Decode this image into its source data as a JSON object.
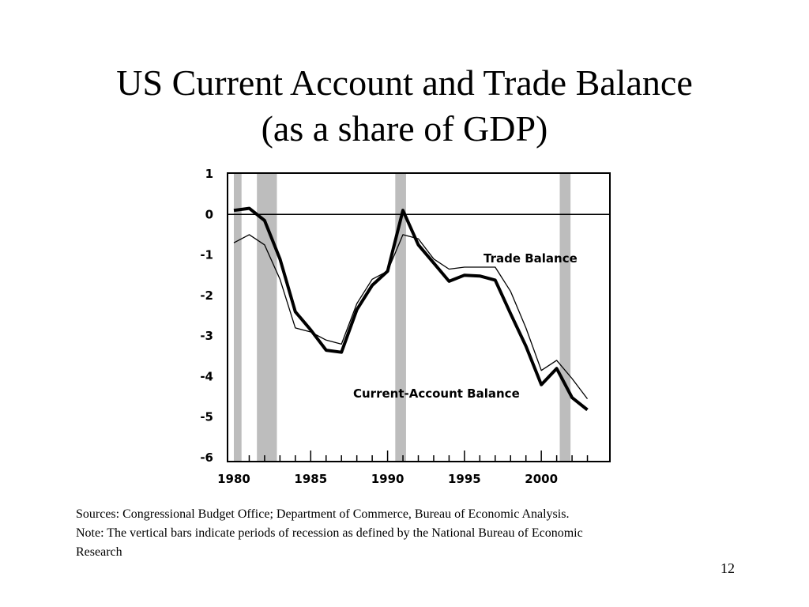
{
  "slide": {
    "title_line1": "US Current Account and Trade Balance",
    "title_line2": "(as a share of GDP)",
    "source_line1": "Sources: Congressional Budget Office; Department of Commerce, Bureau of Economic Analysis.",
    "source_line2": "Note: The vertical bars indicate periods of recession as defined by the National Bureau of Economic",
    "source_line3": "Research",
    "page_number": "12"
  },
  "chart_data": {
    "type": "line",
    "title": "",
    "xlabel": "",
    "ylabel": "",
    "xlim": [
      1980,
      2004
    ],
    "ylim": [
      -6,
      1
    ],
    "x_ticks": [
      1980,
      1985,
      1990,
      1995,
      2000
    ],
    "x_tick_labels": [
      "1980",
      "1985",
      "1990",
      "1995",
      "2000"
    ],
    "y_ticks": [
      1,
      0,
      -1,
      -2,
      -3,
      -4,
      -5,
      -6
    ],
    "y_tick_labels": [
      "1",
      "0",
      "-1",
      "-2",
      "-3",
      "-4",
      "-5",
      "-6"
    ],
    "zero_line": true,
    "grid": false,
    "recession_periods": [
      [
        1980.0,
        1980.5
      ],
      [
        1981.5,
        1982.8
      ],
      [
        1990.5,
        1991.2
      ],
      [
        2001.2,
        2001.9
      ]
    ],
    "series": [
      {
        "name": "Trade Balance",
        "style": "thin",
        "x": [
          1980,
          1981,
          1982,
          1983,
          1984,
          1985,
          1986,
          1987,
          1988,
          1989,
          1990,
          1991,
          1992,
          1993,
          1994,
          1995,
          1996,
          1997,
          1998,
          1999,
          2000,
          2001,
          2002,
          2003
        ],
        "values": [
          -0.7,
          -0.5,
          -0.75,
          -1.6,
          -2.8,
          -2.9,
          -3.1,
          -3.2,
          -2.2,
          -1.6,
          -1.4,
          -0.5,
          -0.6,
          -1.1,
          -1.35,
          -1.3,
          -1.3,
          -1.3,
          -1.9,
          -2.8,
          -3.85,
          -3.6,
          -4.05,
          -4.55
        ]
      },
      {
        "name": "Current-Account Balance",
        "style": "thick",
        "x": [
          1980,
          1981,
          1982,
          1983,
          1984,
          1985,
          1986,
          1987,
          1988,
          1989,
          1990,
          1991,
          1992,
          1993,
          1994,
          1995,
          1996,
          1997,
          1998,
          1999,
          2000,
          2001,
          2002,
          2003
        ],
        "values": [
          0.1,
          0.15,
          -0.15,
          -1.1,
          -2.4,
          -2.85,
          -3.35,
          -3.4,
          -2.35,
          -1.75,
          -1.4,
          0.1,
          -0.75,
          -1.2,
          -1.65,
          -1.5,
          -1.52,
          -1.62,
          -2.45,
          -3.25,
          -4.2,
          -3.8,
          -4.52,
          -4.82
        ]
      }
    ],
    "colors": {
      "recession_bar": "#bdbdbd",
      "line": "#000000",
      "axis": "#000000"
    }
  }
}
